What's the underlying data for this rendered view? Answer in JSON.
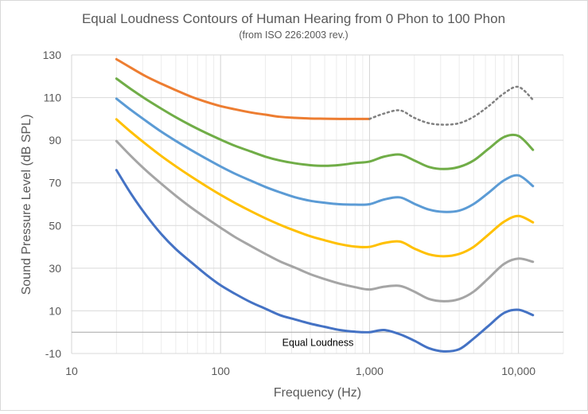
{
  "chart_data": {
    "type": "line",
    "title": "Equal Loudness Contours of Human Hearing from 0 Phon to 100 Phon",
    "subtitle": "(from ISO 226:2003 rev.)",
    "xlabel": "Frequency (Hz)",
    "ylabel": "Sound Pressure Level (dB SPL)",
    "x_scale": "log",
    "xlim": [
      10,
      20000
    ],
    "ylim": [
      -10,
      130
    ],
    "x_ticks": [
      10,
      100,
      1000,
      10000
    ],
    "x_tick_labels": [
      "10",
      "100",
      "1,000",
      "10,000"
    ],
    "y_ticks": [
      -10,
      10,
      30,
      50,
      70,
      90,
      110,
      130
    ],
    "y_tick_labels": [
      "-10",
      "10",
      "30",
      "50",
      "70",
      "90",
      "110",
      "130"
    ],
    "grid": "major horizontal and log vertical gridlines",
    "reference_line": {
      "y": 0,
      "label": "Equal Loudness"
    },
    "series": [
      {
        "color": "#4472c4",
        "points": [
          [
            20,
            76
          ],
          [
            25,
            65
          ],
          [
            31.5,
            55
          ],
          [
            40,
            46
          ],
          [
            50,
            39
          ],
          [
            63,
            33
          ],
          [
            80,
            27
          ],
          [
            100,
            22
          ],
          [
            125,
            18
          ],
          [
            160,
            14
          ],
          [
            200,
            11
          ],
          [
            250,
            8
          ],
          [
            315,
            6
          ],
          [
            400,
            4
          ],
          [
            500,
            2.5
          ],
          [
            630,
            1
          ],
          [
            800,
            0.2
          ],
          [
            1000,
            0
          ],
          [
            1250,
            1
          ],
          [
            1600,
            -1
          ],
          [
            2000,
            -4
          ],
          [
            2500,
            -7.5
          ],
          [
            3150,
            -9
          ],
          [
            4000,
            -8
          ],
          [
            5000,
            -3
          ],
          [
            6300,
            3
          ],
          [
            8000,
            9
          ],
          [
            10000,
            10.5
          ],
          [
            12500,
            8
          ]
        ]
      },
      {
        "color": "#a5a5a5",
        "points": [
          [
            20,
            89.6
          ],
          [
            25,
            82.6
          ],
          [
            31.5,
            75.9
          ],
          [
            40,
            69.6
          ],
          [
            50,
            64.0
          ],
          [
            63,
            58.6
          ],
          [
            80,
            53.5
          ],
          [
            100,
            49.0
          ],
          [
            125,
            44.6
          ],
          [
            160,
            40.4
          ],
          [
            200,
            36.7
          ],
          [
            250,
            33.2
          ],
          [
            315,
            30.3
          ],
          [
            400,
            27.2
          ],
          [
            500,
            24.9
          ],
          [
            630,
            22.8
          ],
          [
            800,
            21.1
          ],
          [
            1000,
            20.0
          ],
          [
            1250,
            21.3
          ],
          [
            1600,
            21.7
          ],
          [
            2000,
            19.0
          ],
          [
            2500,
            15.6
          ],
          [
            3150,
            14.5
          ],
          [
            4000,
            15.5
          ],
          [
            5000,
            19.0
          ],
          [
            6300,
            25.3
          ],
          [
            8000,
            32.0
          ],
          [
            10000,
            34.5
          ],
          [
            12500,
            33.0
          ]
        ]
      },
      {
        "color": "#ffc000",
        "points": [
          [
            20,
            99.8
          ],
          [
            25,
            93.9
          ],
          [
            31.5,
            88.2
          ],
          [
            40,
            82.6
          ],
          [
            50,
            77.8
          ],
          [
            63,
            73.1
          ],
          [
            80,
            68.5
          ],
          [
            100,
            64.4
          ],
          [
            125,
            60.6
          ],
          [
            160,
            56.7
          ],
          [
            200,
            53.4
          ],
          [
            250,
            50.4
          ],
          [
            315,
            47.6
          ],
          [
            400,
            45.0
          ],
          [
            500,
            43.1
          ],
          [
            630,
            41.3
          ],
          [
            800,
            40.1
          ],
          [
            1000,
            40.0
          ],
          [
            1250,
            41.8
          ],
          [
            1600,
            42.5
          ],
          [
            2000,
            39.2
          ],
          [
            2500,
            36.5
          ],
          [
            3150,
            35.6
          ],
          [
            4000,
            36.7
          ],
          [
            5000,
            40.0
          ],
          [
            6300,
            45.8
          ],
          [
            8000,
            51.8
          ],
          [
            10000,
            54.5
          ],
          [
            12500,
            51.5
          ]
        ]
      },
      {
        "color": "#5b9bd5",
        "points": [
          [
            20,
            109.5
          ],
          [
            25,
            104.2
          ],
          [
            31.5,
            99.1
          ],
          [
            40,
            94.0
          ],
          [
            50,
            89.7
          ],
          [
            63,
            85.5
          ],
          [
            80,
            81.4
          ],
          [
            100,
            77.7
          ],
          [
            125,
            74.3
          ],
          [
            160,
            71.0
          ],
          [
            200,
            68.1
          ],
          [
            250,
            65.6
          ],
          [
            315,
            63.3
          ],
          [
            400,
            61.6
          ],
          [
            500,
            60.7
          ],
          [
            630,
            60.0
          ],
          [
            800,
            59.8
          ],
          [
            1000,
            60.0
          ],
          [
            1250,
            62.2
          ],
          [
            1600,
            63.2
          ],
          [
            2000,
            60.2
          ],
          [
            2500,
            57.5
          ],
          [
            3150,
            56.4
          ],
          [
            4000,
            57.0
          ],
          [
            5000,
            60.1
          ],
          [
            6300,
            65.4
          ],
          [
            8000,
            71.2
          ],
          [
            10000,
            73.5
          ],
          [
            12500,
            68.5
          ]
        ]
      },
      {
        "color": "#70ad47",
        "points": [
          [
            20,
            118.9
          ],
          [
            25,
            114.0
          ],
          [
            31.5,
            109.3
          ],
          [
            40,
            104.8
          ],
          [
            50,
            100.8
          ],
          [
            63,
            97.0
          ],
          [
            80,
            93.4
          ],
          [
            100,
            90.3
          ],
          [
            125,
            87.4
          ],
          [
            160,
            84.7
          ],
          [
            200,
            82.3
          ],
          [
            250,
            80.5
          ],
          [
            315,
            79.2
          ],
          [
            400,
            78.3
          ],
          [
            500,
            78.0
          ],
          [
            630,
            78.4
          ],
          [
            800,
            79.3
          ],
          [
            1000,
            80.0
          ],
          [
            1250,
            82.3
          ],
          [
            1600,
            83.3
          ],
          [
            2000,
            80.5
          ],
          [
            2500,
            77.5
          ],
          [
            3150,
            76.5
          ],
          [
            4000,
            77.5
          ],
          [
            5000,
            80.5
          ],
          [
            6300,
            86.0
          ],
          [
            8000,
            91.5
          ],
          [
            10000,
            92.0
          ],
          [
            12500,
            85.5
          ]
        ]
      },
      {
        "color": "#ed7d31",
        "points": [
          [
            20,
            128
          ],
          [
            25,
            124
          ],
          [
            31.5,
            120
          ],
          [
            40,
            116.5
          ],
          [
            50,
            113.5
          ],
          [
            63,
            110.5
          ],
          [
            80,
            108
          ],
          [
            100,
            106
          ],
          [
            125,
            104.5
          ],
          [
            160,
            103
          ],
          [
            200,
            102
          ],
          [
            250,
            101
          ],
          [
            315,
            100.5
          ],
          [
            400,
            100.2
          ],
          [
            500,
            100.1
          ],
          [
            630,
            100
          ],
          [
            800,
            100
          ],
          [
            1000,
            100
          ]
        ]
      },
      {
        "color": "#808080",
        "dash": "dotted",
        "points": [
          [
            1000,
            100
          ],
          [
            1250,
            102.5
          ],
          [
            1600,
            104
          ],
          [
            2000,
            100.5
          ],
          [
            2500,
            98
          ],
          [
            3150,
            97.3
          ],
          [
            4000,
            98
          ],
          [
            5000,
            101
          ],
          [
            6300,
            106
          ],
          [
            8000,
            112
          ],
          [
            10000,
            115
          ],
          [
            12500,
            109
          ]
        ]
      }
    ]
  }
}
